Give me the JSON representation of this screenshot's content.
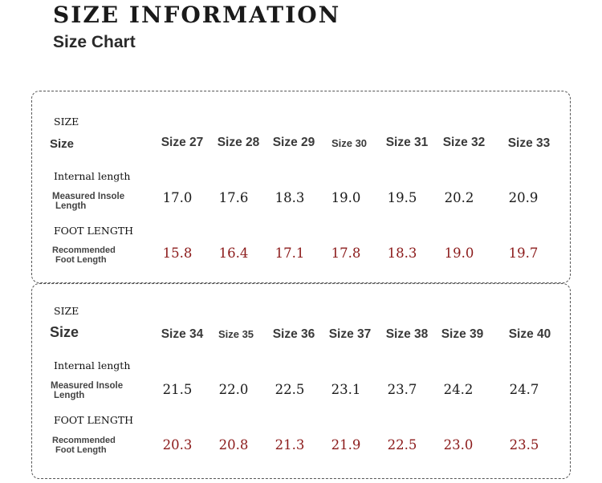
{
  "title": "SIZE INFORMATION",
  "subtitle": "Size Chart",
  "labels": {
    "size_caps": "SIZE",
    "size": "Size",
    "internal_length": "Internal length",
    "measured_l1": "Measured Insole",
    "measured_l2": "Length",
    "foot_length": "FOOT LENGTH",
    "recommended_l1": "Recommended",
    "recommended_l2": "Foot Length"
  },
  "tables": [
    {
      "sizes": [
        "Size 27",
        "Size 28",
        "Size 29",
        "Size 30",
        "Size 31",
        "Size 32",
        "Size 33"
      ],
      "insole": [
        "17.0",
        "17.6",
        "18.3",
        "19.0",
        "19.5",
        "20.2",
        "20.9"
      ],
      "foot": [
        "15.8",
        "16.4",
        "17.1",
        "17.8",
        "18.3",
        "19.0",
        "19.7"
      ]
    },
    {
      "sizes": [
        "Size 34",
        "Size 35",
        "Size 36",
        "Size 37",
        "Size 38",
        "Size 39",
        "Size 40"
      ],
      "insole": [
        "21.5",
        "22.0",
        "22.5",
        "23.1",
        "23.7",
        "24.2",
        "24.7"
      ],
      "foot": [
        "20.3",
        "20.8",
        "21.3",
        "21.9",
        "22.5",
        "23.0",
        "23.5"
      ]
    }
  ]
}
